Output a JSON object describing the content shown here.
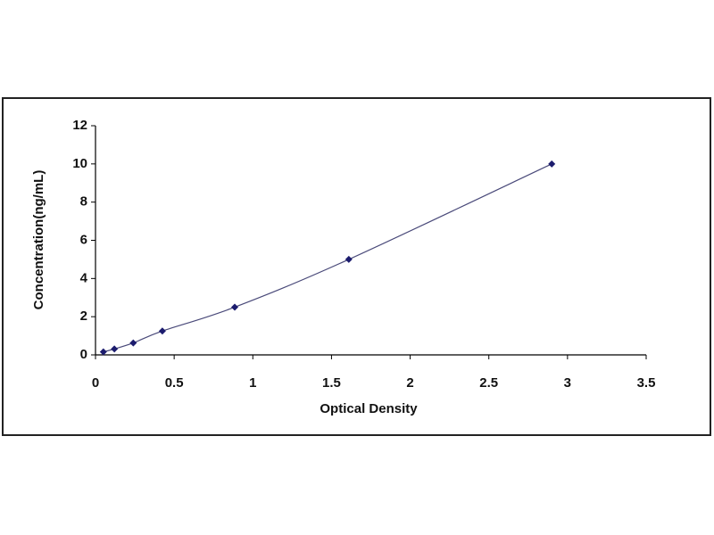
{
  "chart_data": {
    "type": "scatter",
    "x_label": "Optical Density",
    "y_label": "Concentration(ng/mL)",
    "x": [
      0.05,
      0.12,
      0.24,
      0.425,
      0.885,
      1.61,
      2.9
    ],
    "series": [
      {
        "color": "#1c1c6e",
        "values": [
          0.156,
          0.312,
          0.625,
          1.25,
          2.5,
          5,
          10
        ]
      }
    ],
    "line_color": "#4a4a7a",
    "xlim": [
      0,
      3.5
    ],
    "xticks": [
      0,
      0.5,
      1,
      1.5,
      2,
      2.5,
      3,
      3.5
    ],
    "ylim": [
      0,
      12
    ],
    "yticks": [
      0,
      2,
      4,
      6,
      8,
      10,
      12
    ],
    "grid": false
  }
}
